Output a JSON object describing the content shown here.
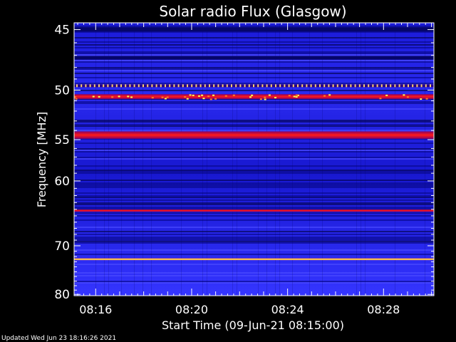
{
  "chart_data": {
    "type": "heatmap",
    "title": "Solar radio Flux (Glasgow)",
    "ylabel": "Frequency [MHz]",
    "xlabel": "Start Time (09-Jun-21 08:15:00)",
    "footer": "Updated Wed Jun 23 18:16:26 2021",
    "y_ticks": [
      "45",
      "50",
      "55",
      "60",
      "70",
      "80"
    ],
    "y_tick_values": [
      45,
      50,
      55,
      60,
      70,
      80
    ],
    "x_ticks": [
      "08:16",
      "08:20",
      "08:24",
      "08:28"
    ],
    "x_tick_minutes": [
      16,
      20,
      24,
      28
    ],
    "x_range_minutes": [
      15.1,
      30.1
    ],
    "y_range_mhz": [
      44.5,
      80.3
    ],
    "y_scale": "reciprocal",
    "colormap": [
      "#000000",
      "#0000c8",
      "#2020ff",
      "#6060ff",
      "#aa0000",
      "#ff2020",
      "#ffff40",
      "#ffffe0"
    ],
    "bands": [
      {
        "freq_mhz": 45.0,
        "width_mhz": 0.3,
        "intensity": 0.05
      },
      {
        "freq_mhz": 47.2,
        "width_mhz": 0.3,
        "intensity": 0.1
      },
      {
        "freq_mhz": 49.6,
        "width_mhz": 0.25,
        "intensity": 0.75,
        "note": "dotted interference line"
      },
      {
        "freq_mhz": 50.6,
        "width_mhz": 0.45,
        "intensity": 0.65
      },
      {
        "freq_mhz": 54.5,
        "width_mhz": 0.8,
        "intensity": 0.6
      },
      {
        "freq_mhz": 64.2,
        "width_mhz": 0.35,
        "intensity": 0.55
      },
      {
        "freq_mhz": 72.5,
        "width_mhz": 0.35,
        "intensity": 1.0
      }
    ]
  }
}
